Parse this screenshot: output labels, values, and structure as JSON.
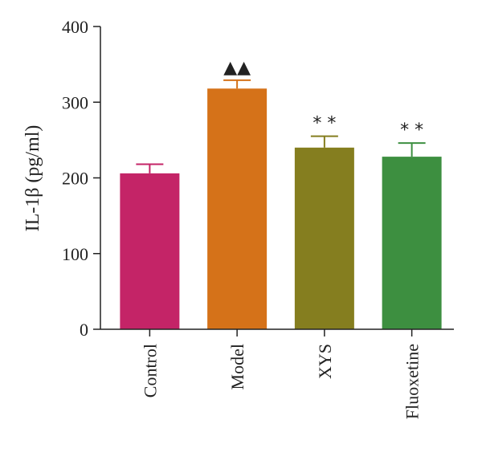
{
  "chart_data": {
    "type": "bar",
    "categories": [
      "Control",
      "Model",
      "XYS",
      "Fluoxetine"
    ],
    "values": [
      206,
      318,
      240,
      228
    ],
    "error": [
      12,
      11,
      15,
      18
    ],
    "annotations": [
      "",
      "▲▲",
      "* *",
      "* *"
    ],
    "colors": [
      "#c42467",
      "#d57219",
      "#857e1f",
      "#3d8f40"
    ],
    "ylabel": "IL-1β (pg/ml)",
    "ylim": [
      0,
      400
    ],
    "yticks": [
      0,
      100,
      200,
      300,
      400
    ],
    "grid": false
  }
}
